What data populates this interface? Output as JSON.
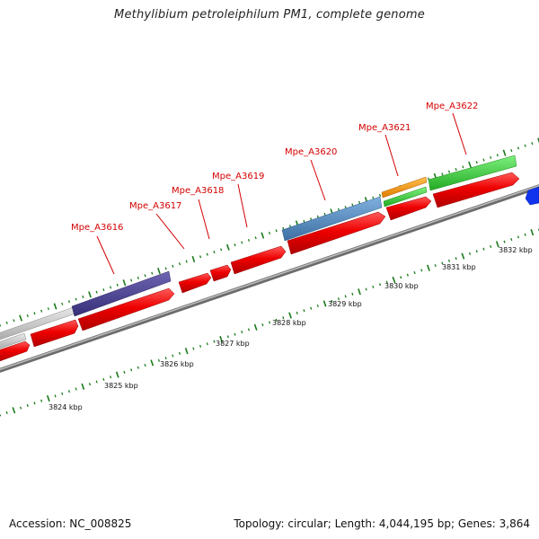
{
  "title": "Methylibium petroleiphilum PM1, complete genome",
  "footer": {
    "accession": "Accession: NC_008825",
    "summary": "Topology: circular; Length: 4,044,195 bp; Genes: 3,864"
  },
  "colors": {
    "gene_red": "#ee0000",
    "backbone": "#8a8a8a",
    "tick": "#1a7a1a",
    "label_red": "#d40000",
    "purple": "#4a3f8f",
    "steelblue": "#4f87bf",
    "green": "#33cc33",
    "orange": "#ff9900",
    "gray": "#c8c8c8",
    "blue": "#1133ee"
  },
  "gene_labels": [
    "Mpe_A3616",
    "Mpe_A3617",
    "Mpe_A3618",
    "Mpe_A3619",
    "Mpe_A3620",
    "Mpe_A3621",
    "Mpe_A3622"
  ],
  "kbp_labels": [
    "3824 kbp",
    "3825 kbp",
    "3826 kbp",
    "3827 kbp",
    "3828 kbp",
    "3829 kbp",
    "3830 kbp",
    "3831 kbp",
    "3832 kbp"
  ]
}
